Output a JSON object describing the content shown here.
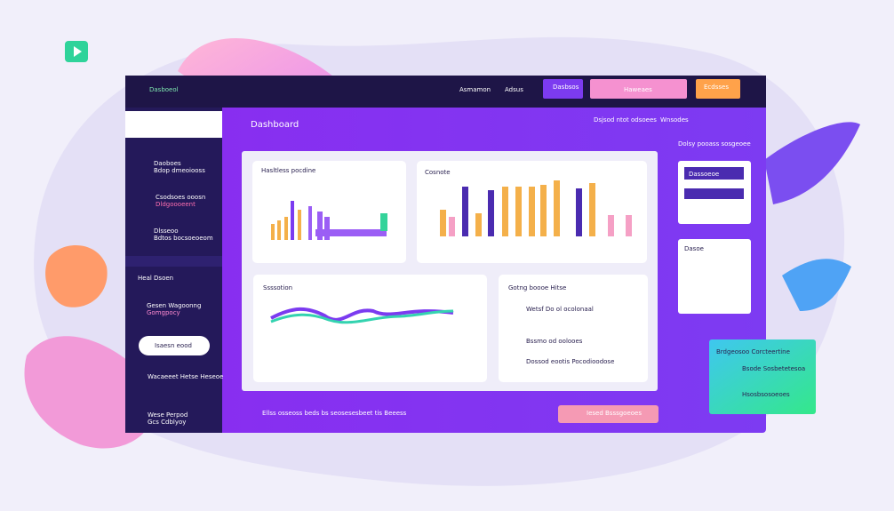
{
  "header": {
    "brand": "Dasboeol",
    "nav": [
      "Asmamon",
      "Adsus"
    ],
    "buttons": [
      "Dasbsos",
      "Haweaes",
      "Ecdsses"
    ]
  },
  "sidebar": {
    "items": [
      {
        "title": "Daoboes",
        "sub": "Bdop dmeoiooss"
      },
      {
        "title": "Csodsoes ooosn",
        "sub": "Dldgoooeent"
      },
      {
        "title": "Dlsseoo",
        "sub": "Bdtos bocsoeoeom"
      }
    ],
    "section": "Heal Dsoen",
    "profile": {
      "title": "Gesen Wagoonng",
      "sub": "Gomgpocy"
    },
    "button": "Isaesn eood",
    "link": "Wacaeeet Hetse Heseoe",
    "footer": {
      "title": "Wese Perpod",
      "sub": "Gcs Cdblyoy"
    }
  },
  "main": {
    "title": "Dashboard",
    "top_links": [
      "Dsjsod ntot odsoees",
      "Wnsodes"
    ],
    "aside_title": "Dolsy pooass sosgeoee",
    "cards": [
      {
        "title": "Hasltless pocdine"
      },
      {
        "title": "Cosnote"
      },
      {
        "title": "Ssssotion"
      },
      {
        "title": "Gotng boooe Hitse",
        "items": [
          "Wetsf Do ol ocolonaal",
          "Bssmo od oolooes",
          "Dossod eootis Pocodioodose"
        ]
      }
    ],
    "footer_text": "Ellss osseoss beds bs seosesesbeet tis Beeess",
    "footer_button": "Iesed Bsssgoeoes"
  },
  "side_panels": {
    "panel1": "Dassoeoe",
    "panel2": "Dasoe"
  },
  "green_card": {
    "title": "Brdgeosoo Corcteertine",
    "lines": [
      "Bsode Sosbetetesoa",
      "Hsosbsosoeoes"
    ]
  }
}
